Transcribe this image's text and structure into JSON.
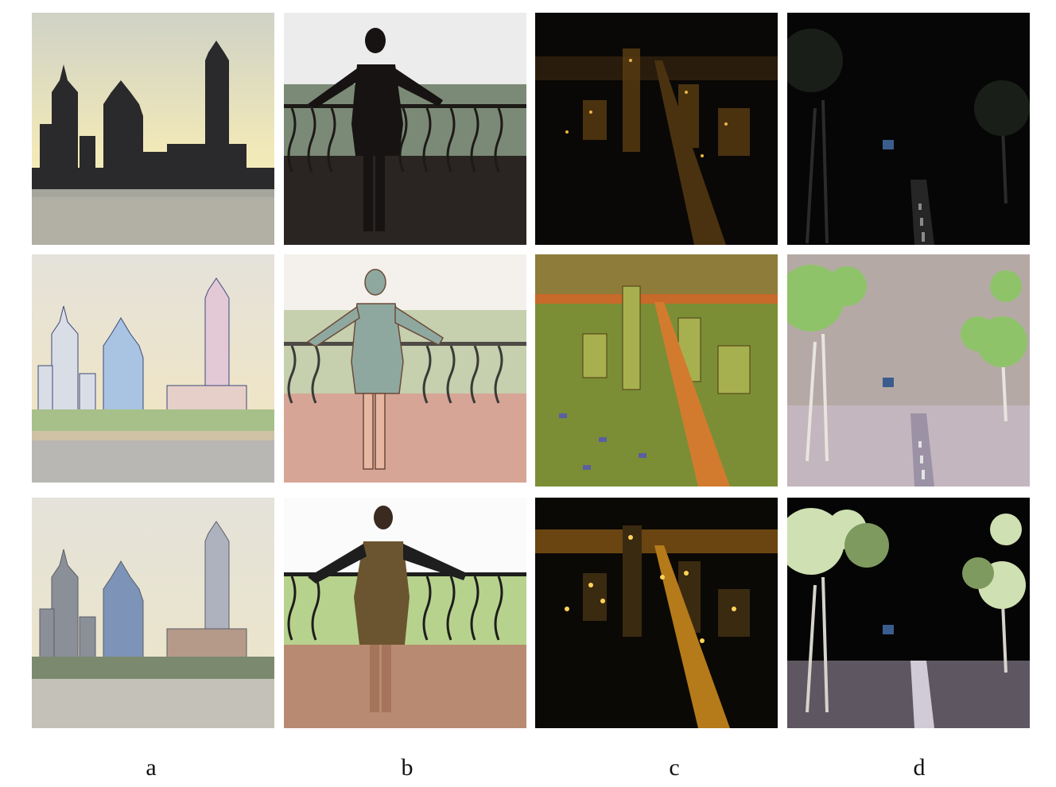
{
  "figure": {
    "column_labels": [
      "a",
      "b",
      "c",
      "d"
    ],
    "rows": [
      {
        "panels": [
          "a-input",
          "b-input",
          "c-input",
          "d-input"
        ]
      },
      {
        "panels": [
          "a-method",
          "b-method",
          "c-method",
          "d-method"
        ]
      },
      {
        "panels": [
          "a-result",
          "b-result",
          "c-result",
          "d-result"
        ]
      }
    ],
    "scenes": {
      "a": "city-skyline-waterfront",
      "b": "woman-on-balcony",
      "c": "night-city-aerial",
      "d": "night-park-path"
    }
  }
}
